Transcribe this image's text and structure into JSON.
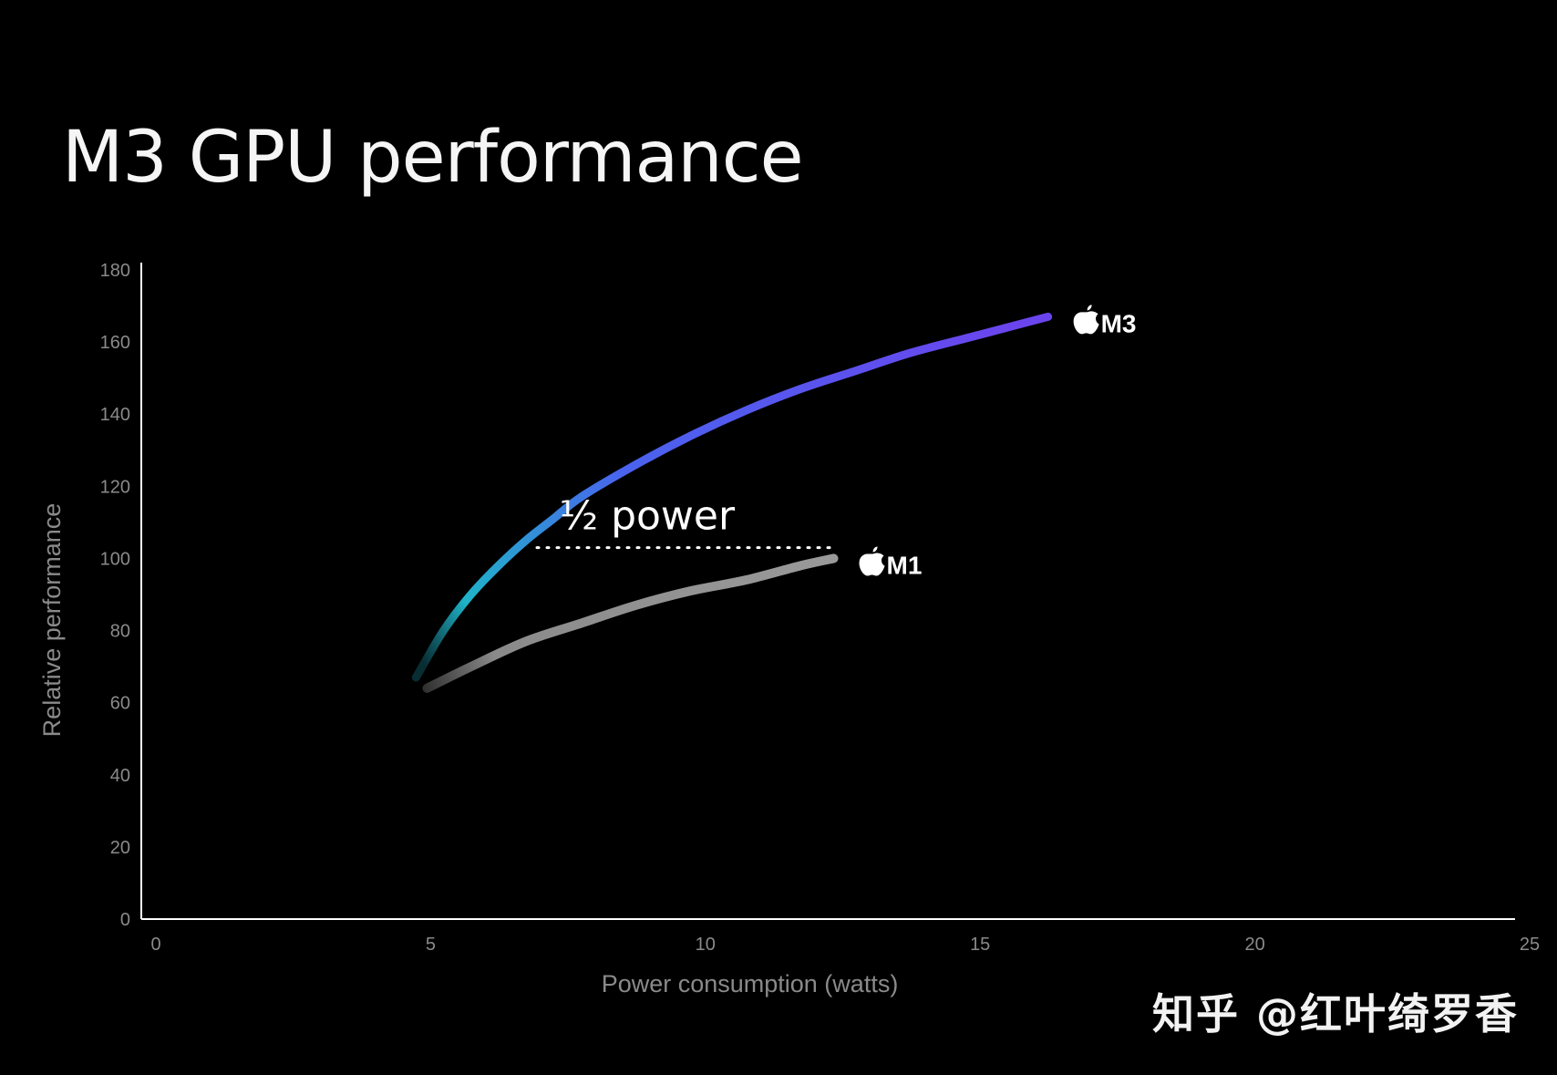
{
  "title": "M3 GPU performance",
  "watermark": "知乎 @红叶绮罗香",
  "colors": {
    "background": "#000000",
    "axis": "#ffffff",
    "tick_text": "#8a8a8a",
    "m3_start": "#1fb3c8",
    "m3_mid": "#4a63ee",
    "m3_end": "#6a45ee",
    "m1": "#8a8a8a"
  },
  "chart_data": {
    "type": "line",
    "xlabel": "Power consumption (watts)",
    "ylabel": "Relative performance",
    "xlim": [
      0,
      25
    ],
    "ylim": [
      0,
      180
    ],
    "xticks": [
      0,
      5,
      10,
      15,
      20,
      25
    ],
    "yticks": [
      0,
      20,
      40,
      60,
      80,
      100,
      120,
      140,
      160,
      180
    ],
    "grid": false,
    "series": [
      {
        "name": "M3",
        "x": [
          5.0,
          5.5,
          6.0,
          6.5,
          7.0,
          7.5,
          8.0,
          9.0,
          10.0,
          11.0,
          12.0,
          13.0,
          14.0,
          15.0,
          16.0,
          16.5
        ],
        "y": [
          67,
          80,
          90,
          98,
          105,
          111,
          117,
          126,
          134,
          141,
          147,
          152,
          157,
          161,
          165,
          167
        ]
      },
      {
        "name": "M1",
        "x": [
          5.2,
          6.0,
          7.0,
          8.0,
          9.0,
          10.0,
          11.0,
          12.0,
          12.6
        ],
        "y": [
          64,
          70,
          77,
          82,
          87,
          91,
          94,
          98,
          100
        ]
      }
    ],
    "annotations": [
      {
        "text": "½ power",
        "y": 103,
        "x_from": 7.2,
        "x_to": 12.6
      }
    ]
  }
}
